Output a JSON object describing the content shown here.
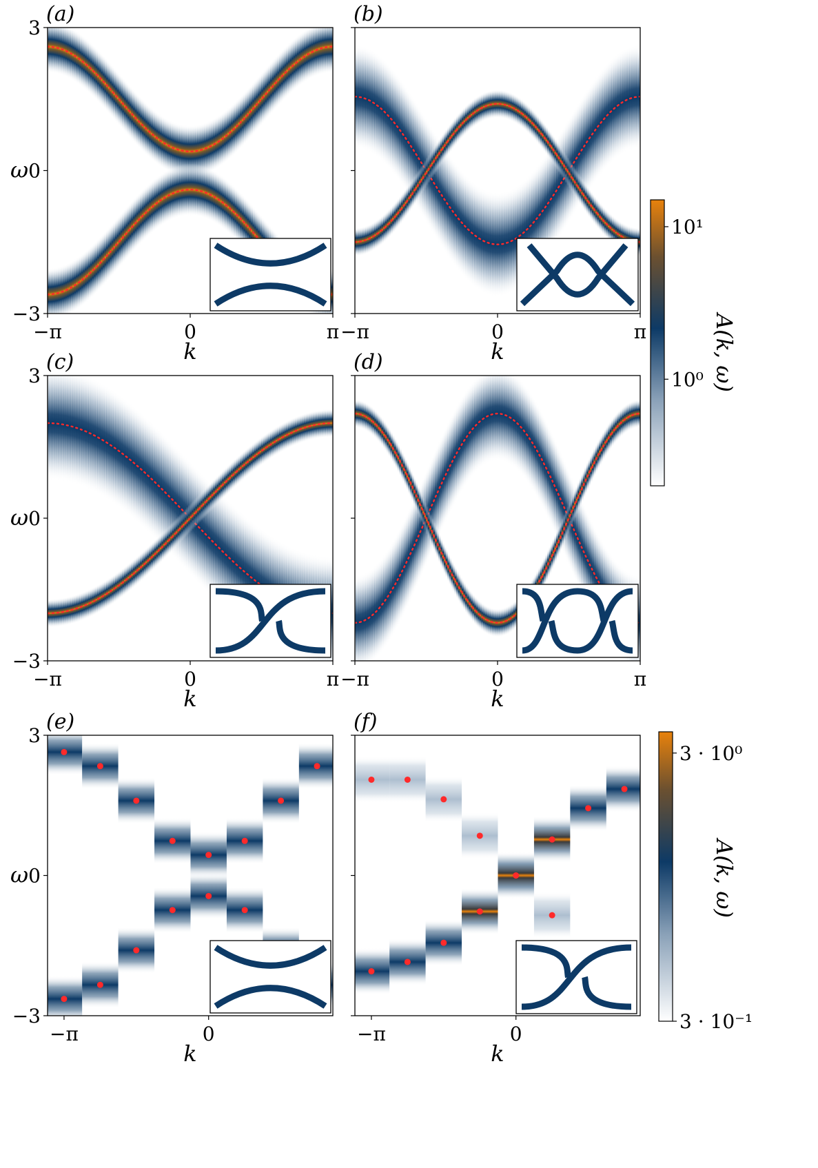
{
  "colors": {
    "band_core": "#0d3a66",
    "band_peak": "#e8820c",
    "band_edge": "#ffffff",
    "dispersion_dots": "#ff2a2a",
    "inset_line": "#0d3a66"
  },
  "figure": {
    "xlabel": "k",
    "ylabel": "ω",
    "colorbar_label": "A(k, ω)"
  },
  "colorbars": [
    {
      "id": "cb1",
      "scale": "log",
      "range": [
        0.2,
        15
      ],
      "tick_labels": [
        "10¹",
        "10⁰"
      ],
      "tick_values": [
        10,
        1
      ]
    },
    {
      "id": "cb2",
      "scale": "log",
      "range": [
        0.3,
        3.6
      ],
      "tick_labels": [
        "3 · 10⁰",
        "3 · 10⁻¹"
      ],
      "tick_values": [
        3,
        0.3
      ]
    }
  ],
  "chart_data": [
    {
      "panel": "(a)",
      "type": "heatmap",
      "inset": "gapped",
      "xlim": [
        -3.1416,
        3.1416
      ],
      "ylim": [
        -3,
        3
      ],
      "xticks": [
        "−π",
        "0",
        "π"
      ],
      "yticks": [
        "3",
        "0",
        "−3"
      ],
      "ytick_values": [
        3,
        0,
        -3
      ],
      "series": [
        {
          "branch": "upper",
          "dispersion": "0.4 + 1.1*(1 - cos k)",
          "width": 0.55
        },
        {
          "branch": "lower",
          "dispersion": "-(0.4 + 1.1*(1 - cos k))",
          "width": 0.55
        }
      ]
    },
    {
      "panel": "(b)",
      "type": "heatmap",
      "inset": "crossed",
      "xlim": [
        -3.1416,
        3.1416
      ],
      "ylim": [
        -3,
        3
      ],
      "xticks": [
        "−π",
        "0",
        "π"
      ],
      "yticks": [],
      "ytick_values": [
        3,
        0,
        -3
      ],
      "series": [
        {
          "branch": "sharp",
          "dispersion": "-0.05 + 1.45*cos k",
          "width": 0.3
        },
        {
          "branch": "broad",
          "dispersion": "-1.55*cos k",
          "width": 1.1
        }
      ]
    },
    {
      "panel": "(c)",
      "type": "heatmap",
      "inset": "single-winding",
      "xlim": [
        -3.1416,
        3.1416
      ],
      "ylim": [
        -3,
        3
      ],
      "xticks": [
        "−π",
        "0",
        "π"
      ],
      "yticks": [
        "3",
        "0",
        "−3"
      ],
      "ytick_values": [
        3,
        0,
        -3
      ],
      "series": [
        {
          "branch": "sharp",
          "dispersion": "2.0*sin(k/2)",
          "width": 0.3
        },
        {
          "branch": "broad",
          "dispersion": "-2.0*sin(k/2)",
          "width": 1.2
        }
      ]
    },
    {
      "panel": "(d)",
      "type": "heatmap",
      "inset": "double-winding",
      "xlim": [
        -3.1416,
        3.1416
      ],
      "ylim": [
        -3,
        3
      ],
      "xticks": [
        "−π",
        "0",
        "π"
      ],
      "yticks": [],
      "ytick_values": [
        3,
        0,
        -3
      ],
      "series": [
        {
          "branch": "sharp",
          "dispersion": "2.2*sin(k - π/2)",
          "width": 0.3
        },
        {
          "branch": "broad",
          "dispersion": "-2.2*sin(k - π/2)",
          "width": 1.0
        }
      ]
    },
    {
      "panel": "(e)",
      "type": "heatmap",
      "inset": "gapped",
      "xlim": [
        -3.5,
        2.7
      ],
      "ylim": [
        -3,
        3
      ],
      "xticks": [
        "−π",
        "0"
      ],
      "xtick_values": [
        -3.1416,
        0
      ],
      "yticks": [
        "3",
        "0",
        "−3"
      ],
      "ytick_values": [
        3,
        0,
        -3
      ],
      "k_points": [
        -3.1416,
        -2.3562,
        -1.5708,
        -0.7854,
        0,
        0.7854,
        1.5708,
        2.3562
      ],
      "upper_points": [
        2.64,
        2.34,
        1.6,
        0.74,
        0.44,
        0.74,
        1.6,
        2.34
      ],
      "lower_points": [
        -2.64,
        -2.34,
        -1.6,
        -0.74,
        -0.44,
        -0.74,
        -1.6,
        -2.34
      ]
    },
    {
      "panel": "(f)",
      "type": "heatmap",
      "inset": "single-winding",
      "xlim": [
        -3.5,
        2.7
      ],
      "ylim": [
        -3,
        3
      ],
      "xticks": [
        "−π",
        "0"
      ],
      "xtick_values": [
        -3.1416,
        0
      ],
      "yticks": [],
      "ytick_values": [
        3,
        0,
        -3
      ],
      "k_points": [
        -3.1416,
        -2.3562,
        -1.5708,
        -0.7854,
        0,
        0.7854,
        1.5708,
        2.3562
      ],
      "sharp_points": [
        -2.05,
        -1.85,
        -1.44,
        -0.77,
        0.0,
        0.77,
        1.44,
        1.85
      ],
      "broad_points": [
        2.05,
        2.05,
        1.63,
        0.85,
        0.0,
        -0.85,
        null,
        null
      ]
    }
  ]
}
